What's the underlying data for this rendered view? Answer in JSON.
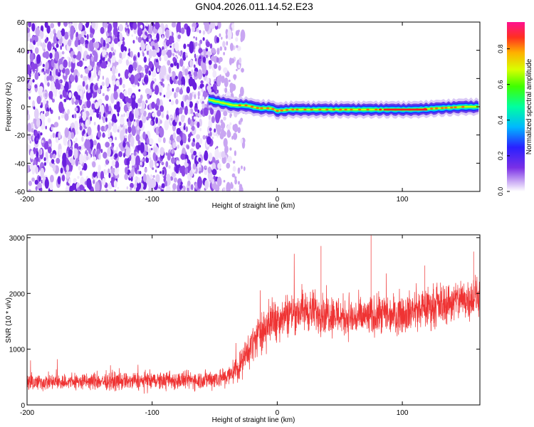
{
  "title": "GN04.2026.011.14.52.E23",
  "colors": {
    "accent": "#ef3333",
    "density": "#7a30e6",
    "band_peak": "#ff2020"
  },
  "chart_data": [
    {
      "type": "heatmap",
      "xlabel": "Height of straight line (km)",
      "ylabel": "Frequency (Hz)",
      "xlim": [
        -200,
        162
      ],
      "ylim": [
        -60,
        60
      ],
      "x_ticks": [
        {
          "value": -200,
          "label": "-200"
        },
        {
          "value": -100,
          "label": "-100"
        },
        {
          "value": 0,
          "label": "0"
        },
        {
          "value": 100,
          "label": "100"
        }
      ],
      "y_ticks": [
        {
          "value": -60,
          "label": "-60"
        },
        {
          "value": -40,
          "label": "-40"
        },
        {
          "value": -20,
          "label": "-20"
        },
        {
          "value": 0,
          "label": "0"
        },
        {
          "value": 20,
          "label": "20"
        },
        {
          "value": 40,
          "label": "40"
        },
        {
          "value": 60,
          "label": "60"
        }
      ],
      "noise_region": {
        "x_from": -200,
        "x_to": -35
      },
      "ridge": {
        "x": [
          -55,
          -45,
          -35,
          -25,
          -15,
          -5,
          0,
          10,
          30,
          50,
          70,
          90,
          110,
          130,
          150,
          162
        ],
        "y": [
          5,
          3,
          1,
          1,
          -1,
          -1,
          -3,
          -2,
          -2,
          -2,
          -2,
          -2,
          -2,
          -1,
          0,
          0
        ]
      },
      "colorbar": {
        "label": "Normalized spectral amplitude",
        "range": [
          0,
          0.95
        ],
        "ticks": [
          {
            "value": 0.0,
            "label": "0.0"
          },
          {
            "value": 0.2,
            "label": "0.2"
          },
          {
            "value": 0.4,
            "label": "0.4"
          },
          {
            "value": 0.6,
            "label": "0.6"
          },
          {
            "value": 0.8,
            "label": "0.8"
          }
        ]
      }
    },
    {
      "type": "line",
      "xlabel": "Height of straight line (km)",
      "ylabel": "SNR (10 * v/v)",
      "xlim": [
        -200,
        162
      ],
      "ylim": [
        0,
        3050
      ],
      "x_ticks": [
        {
          "value": -200,
          "label": "-200"
        },
        {
          "value": -100,
          "label": "-100"
        },
        {
          "value": 0,
          "label": "0"
        },
        {
          "value": 100,
          "label": "100"
        }
      ],
      "y_ticks": [
        {
          "value": 0,
          "label": "0"
        },
        {
          "value": 1000,
          "label": "1000"
        },
        {
          "value": 2000,
          "label": "2000"
        },
        {
          "value": 3000,
          "label": "3000"
        }
      ],
      "series": [
        {
          "name": "SNR",
          "color": "#ef3333",
          "x": [
            -200,
            -150,
            -100,
            -60,
            -40,
            -30,
            -20,
            -10,
            0,
            10,
            20,
            40,
            60,
            80,
            100,
            120,
            140,
            162
          ],
          "mean": [
            400,
            420,
            430,
            450,
            500,
            700,
            1100,
            1400,
            1550,
            1650,
            1700,
            1650,
            1550,
            1600,
            1650,
            1750,
            1850,
            1950
          ],
          "spread": [
            230,
            240,
            250,
            260,
            300,
            400,
            520,
            600,
            600,
            600,
            600,
            580,
            560,
            560,
            560,
            560,
            580,
            600
          ]
        }
      ]
    }
  ]
}
